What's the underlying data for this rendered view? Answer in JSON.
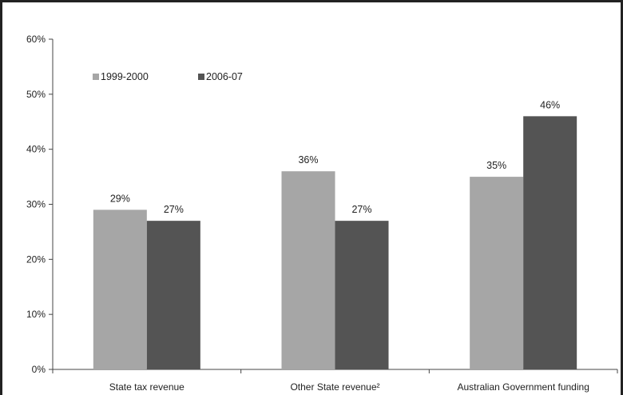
{
  "chart_data": {
    "type": "bar",
    "categories": [
      "State tax revenue",
      "Other State revenue²",
      "Australian Government funding"
    ],
    "series": [
      {
        "name": "1999-2000",
        "values": [
          29,
          36,
          35
        ],
        "labels": [
          "29%",
          "36%",
          "35%"
        ],
        "color": "#a6a6a6"
      },
      {
        "name": "2006-07",
        "values": [
          27,
          27,
          46
        ],
        "labels": [
          "27%",
          "27%",
          "46%"
        ],
        "color": "#545454"
      }
    ],
    "ylim": [
      0,
      60
    ],
    "yticks": [
      0,
      10,
      20,
      30,
      40,
      50,
      60
    ],
    "ytick_labels": [
      "0%",
      "10%",
      "20%",
      "30%",
      "40%",
      "50%",
      "60%"
    ],
    "grid": false,
    "legend_position": "top-left",
    "title": "",
    "xlabel": "",
    "ylabel": ""
  }
}
